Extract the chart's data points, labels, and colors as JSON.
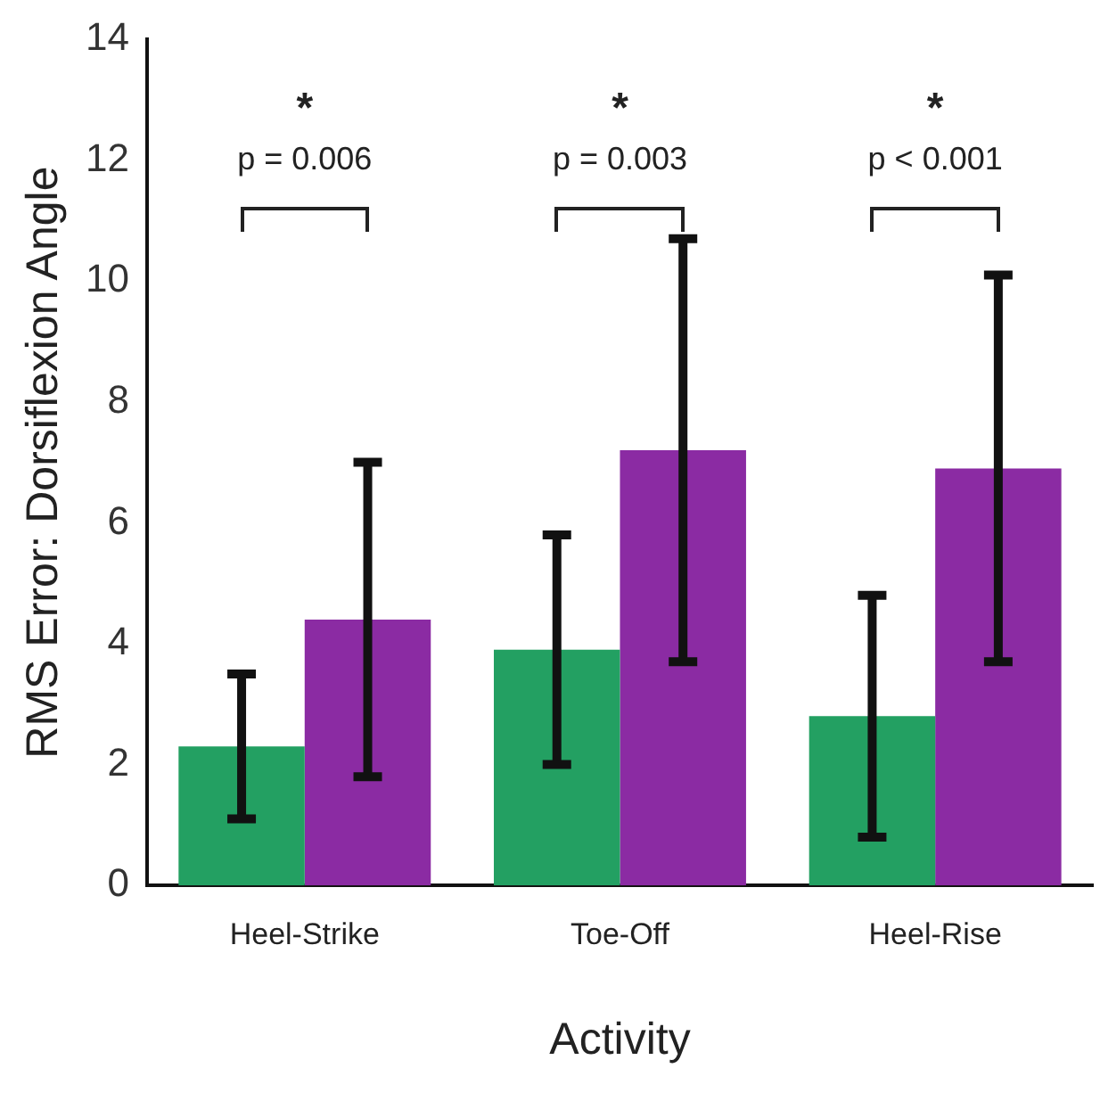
{
  "chart_data": {
    "type": "bar",
    "xlabel": "Activity",
    "ylabel": "RMS Error: Dorsiflexion Angle",
    "categories": [
      "Heel-Strike",
      "Toe-Off",
      "Heel-Rise"
    ],
    "series": [
      {
        "color": "#23a062",
        "values": [
          2.3,
          3.9,
          2.8
        ],
        "errors": [
          1.2,
          1.9,
          2.0
        ]
      },
      {
        "color": "#8b2ba3",
        "values": [
          4.4,
          7.2,
          6.9
        ],
        "errors": [
          2.6,
          3.5,
          3.2
        ]
      }
    ],
    "ylim": [
      0,
      14
    ],
    "yticks": [
      0,
      2,
      4,
      6,
      8,
      10,
      12,
      14
    ],
    "grid": false,
    "legend": false,
    "annotations": [
      "*",
      "p = 0.006",
      "*",
      "p = 0.003",
      "*",
      "p < 0.001"
    ]
  }
}
